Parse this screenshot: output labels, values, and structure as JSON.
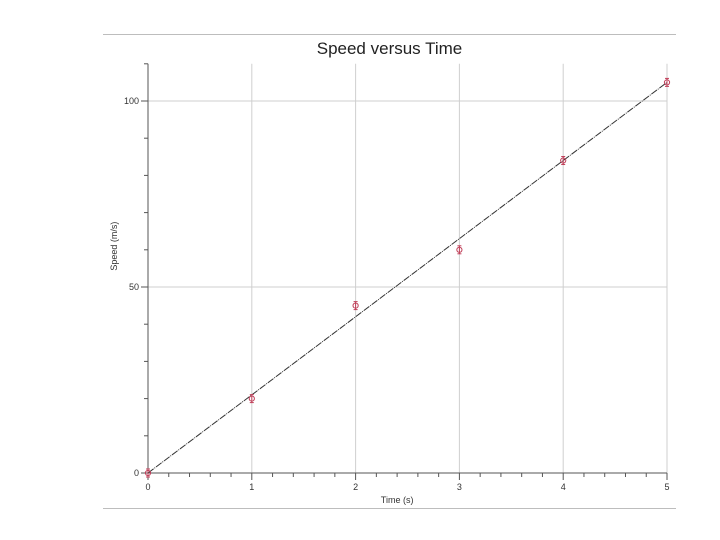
{
  "chart_data": {
    "type": "scatter",
    "title": "Speed versus Time",
    "xlabel": "Time (s)",
    "ylabel": "Speed (m/s)",
    "xlim": [
      0,
      5
    ],
    "ylim": [
      0,
      110
    ],
    "x_ticks": [
      "0",
      "1",
      "2",
      "3",
      "4",
      "5"
    ],
    "y_ticks": [
      "0",
      "50",
      "100"
    ],
    "grid": true,
    "series": [
      {
        "x": [
          0,
          1,
          2,
          3,
          4,
          5
        ],
        "y": [
          0,
          20,
          45,
          60,
          84,
          105
        ]
      }
    ],
    "fit_line": {
      "x": [
        0,
        5
      ],
      "y": [
        0,
        105
      ]
    },
    "colors": {
      "points": "#c0405a",
      "fit": "#333333",
      "grid": "#cfcfcf",
      "axis": "#555555"
    }
  }
}
